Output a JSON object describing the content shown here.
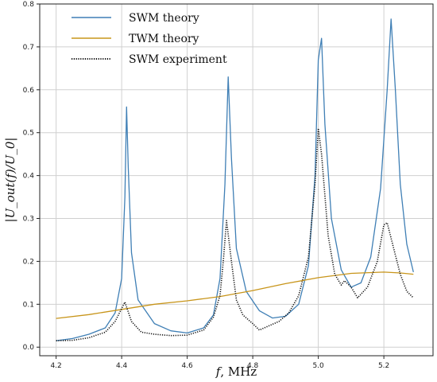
{
  "chart_data": {
    "type": "line",
    "xlabel_prefix": "f",
    "xlabel_suffix": ", MHz",
    "ylabel": "|U_out(f)/U_0|",
    "xlim": [
      4.15,
      5.35
    ],
    "ylim": [
      -0.02,
      0.8
    ],
    "x_ticks": [
      {
        "value": 4.2,
        "label": "4.2"
      },
      {
        "value": 4.4,
        "label": "4.4"
      },
      {
        "value": 4.6,
        "label": "4.6"
      },
      {
        "value": 4.8,
        "label": "4.8"
      },
      {
        "value": 5.0,
        "label": "5.0"
      },
      {
        "value": 5.2,
        "label": "5.2"
      }
    ],
    "y_ticks": [
      {
        "value": 0.0,
        "label": "0.0"
      },
      {
        "value": 0.1,
        "label": "0.1"
      },
      {
        "value": 0.2,
        "label": "0.2"
      },
      {
        "value": 0.3,
        "label": "0.3"
      },
      {
        "value": 0.4,
        "label": "0.4"
      },
      {
        "value": 0.5,
        "label": "0.5"
      },
      {
        "value": 0.6,
        "label": "0.6"
      },
      {
        "value": 0.7,
        "label": "0.7"
      },
      {
        "value": 0.8,
        "label": "0.8"
      }
    ],
    "grid": true,
    "legend_position": "top-left",
    "series": [
      {
        "name": "SWM theory",
        "color": "#3f7fb5",
        "style": "solid",
        "x": [
          4.2,
          4.25,
          4.3,
          4.35,
          4.38,
          4.4,
          4.41,
          4.415,
          4.42,
          4.43,
          4.45,
          4.5,
          4.55,
          4.6,
          4.65,
          4.68,
          4.7,
          4.715,
          4.725,
          4.735,
          4.75,
          4.78,
          4.82,
          4.86,
          4.9,
          4.94,
          4.97,
          4.99,
          5.0,
          5.01,
          5.02,
          5.04,
          5.07,
          5.1,
          5.13,
          5.16,
          5.19,
          5.21,
          5.222,
          5.235,
          5.25,
          5.27,
          5.29
        ],
        "y": [
          0.015,
          0.02,
          0.03,
          0.045,
          0.08,
          0.16,
          0.35,
          0.56,
          0.42,
          0.22,
          0.11,
          0.055,
          0.038,
          0.033,
          0.045,
          0.075,
          0.16,
          0.38,
          0.63,
          0.44,
          0.23,
          0.13,
          0.085,
          0.068,
          0.072,
          0.1,
          0.19,
          0.4,
          0.67,
          0.72,
          0.52,
          0.3,
          0.18,
          0.14,
          0.15,
          0.21,
          0.37,
          0.6,
          0.765,
          0.6,
          0.38,
          0.24,
          0.175
        ]
      },
      {
        "name": "TWM theory",
        "color": "#c8951a",
        "style": "solid",
        "x": [
          4.2,
          4.3,
          4.4,
          4.5,
          4.6,
          4.7,
          4.8,
          4.9,
          5.0,
          5.1,
          5.2,
          5.25,
          5.29
        ],
        "y": [
          0.067,
          0.076,
          0.088,
          0.1,
          0.108,
          0.118,
          0.132,
          0.148,
          0.162,
          0.172,
          0.175,
          0.173,
          0.17
        ]
      },
      {
        "name": "SWM experiment",
        "color": "#111111",
        "style": "dotted",
        "x": [
          4.2,
          4.25,
          4.3,
          4.35,
          4.38,
          4.4,
          4.41,
          4.43,
          4.46,
          4.5,
          4.55,
          4.6,
          4.65,
          4.68,
          4.7,
          4.71,
          4.72,
          4.735,
          4.75,
          4.77,
          4.8,
          4.82,
          4.85,
          4.88,
          4.91,
          4.94,
          4.97,
          4.99,
          5.0,
          5.01,
          5.03,
          5.05,
          5.07,
          5.08,
          5.1,
          5.12,
          5.15,
          5.18,
          5.2,
          5.21,
          5.23,
          5.25,
          5.27,
          5.29
        ],
        "y": [
          0.015,
          0.016,
          0.022,
          0.035,
          0.06,
          0.09,
          0.105,
          0.06,
          0.035,
          0.03,
          0.027,
          0.028,
          0.04,
          0.07,
          0.12,
          0.2,
          0.295,
          0.2,
          0.11,
          0.075,
          0.055,
          0.04,
          0.05,
          0.06,
          0.08,
          0.12,
          0.21,
          0.38,
          0.51,
          0.45,
          0.26,
          0.17,
          0.145,
          0.155,
          0.14,
          0.115,
          0.14,
          0.2,
          0.285,
          0.29,
          0.23,
          0.17,
          0.13,
          0.115
        ]
      }
    ]
  }
}
